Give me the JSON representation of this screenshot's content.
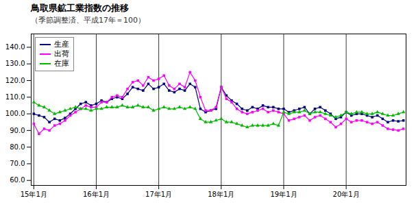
{
  "chart_data": {
    "type": "line",
    "title": "鳥取県鉱工業指数の推移",
    "subtitle": "（季節調整済、平成17年＝100）",
    "categories": [
      "15年1月",
      null,
      null,
      null,
      null,
      null,
      null,
      null,
      null,
      null,
      null,
      null,
      "16年1月",
      null,
      null,
      null,
      null,
      null,
      null,
      null,
      null,
      null,
      null,
      null,
      "17年1月",
      null,
      null,
      null,
      null,
      null,
      null,
      null,
      null,
      null,
      null,
      null,
      "18年1月",
      null,
      null,
      null,
      null,
      null,
      null,
      null,
      null,
      null,
      null,
      null,
      "19年1月",
      null,
      null,
      null,
      null,
      null,
      null,
      null,
      null,
      null,
      null,
      null,
      "20年1月",
      null,
      null,
      null,
      null,
      null,
      null,
      null,
      null,
      null,
      null,
      null
    ],
    "series": [
      {
        "name": "生産",
        "color": "#000080",
        "marker": "square",
        "values": [
          100.0,
          99.0,
          98.0,
          95.0,
          97.0,
          96.0,
          97.5,
          100.0,
          103.0,
          106.0,
          107.0,
          105.0,
          106.0,
          108.0,
          107.0,
          109.0,
          110.0,
          109.0,
          112.0,
          116.0,
          115.0,
          114.0,
          118.0,
          115.0,
          116.0,
          118.0,
          114.0,
          113.0,
          115.0,
          114.0,
          118.0,
          116.0,
          103.0,
          101.0,
          102.0,
          103.0,
          116.0,
          111.0,
          108.0,
          106.0,
          103.0,
          102.0,
          104.0,
          103.0,
          105.0,
          104.0,
          104.0,
          103.0,
          103.0,
          101.0,
          102.0,
          103.0,
          104.0,
          100.0,
          103.0,
          104.0,
          102.0,
          100.0,
          97.0,
          98.0,
          101.0,
          99.0,
          100.0,
          100.0,
          99.0,
          98.0,
          99.0,
          97.0,
          95.0,
          96.0,
          95.5,
          96.0
        ]
      },
      {
        "name": "出荷",
        "color": "#ff00ff",
        "marker": "square",
        "values": [
          94.0,
          88.0,
          91.0,
          90.0,
          93.0,
          94.0,
          96.0,
          99.0,
          101.0,
          103.0,
          105.0,
          104.0,
          104.0,
          107.0,
          107.0,
          110.0,
          111.0,
          110.0,
          115.0,
          119.0,
          120.0,
          117.0,
          122.0,
          120.0,
          121.0,
          123.0,
          117.0,
          115.0,
          118.0,
          116.0,
          125.0,
          120.0,
          110.0,
          102.0,
          102.0,
          104.0,
          116.0,
          109.0,
          107.0,
          103.0,
          101.0,
          100.0,
          101.0,
          102.0,
          103.0,
          101.0,
          102.0,
          101.0,
          100.0,
          96.0,
          97.0,
          98.0,
          99.0,
          96.0,
          98.0,
          99.0,
          97.0,
          95.0,
          92.0,
          94.0,
          97.0,
          95.0,
          96.0,
          96.0,
          95.0,
          94.0,
          95.0,
          93.0,
          91.0,
          90.5,
          90.0,
          91.0
        ]
      },
      {
        "name": "在庫",
        "color": "#00bb00",
        "marker": "triangle",
        "values": [
          107.0,
          105.0,
          104.0,
          102.0,
          100.0,
          101.0,
          102.0,
          103.0,
          104.0,
          103.0,
          103.0,
          102.0,
          103.0,
          103.0,
          104.0,
          104.0,
          104.0,
          105.0,
          104.0,
          104.0,
          105.0,
          104.0,
          104.0,
          102.0,
          103.0,
          104.0,
          103.0,
          103.0,
          104.0,
          103.0,
          104.0,
          103.0,
          97.0,
          95.0,
          95.0,
          96.0,
          97.0,
          95.0,
          95.0,
          94.0,
          93.0,
          92.0,
          93.0,
          93.0,
          93.0,
          93.0,
          94.0,
          93.0,
          101.0,
          100.0,
          101.0,
          101.0,
          102.0,
          100.0,
          101.0,
          101.0,
          100.0,
          99.0,
          98.0,
          99.0,
          101.0,
          100.0,
          101.0,
          101.0,
          100.0,
          100.0,
          101.0,
          100.0,
          99.0,
          99.0,
          100.0,
          101.0
        ]
      }
    ],
    "ylim": [
      57.0,
      148.0
    ],
    "yticks": [
      {
        "value": 60,
        "label": "60.0"
      },
      {
        "value": 70,
        "label": "70.0"
      },
      {
        "value": 80,
        "label": "80.0"
      },
      {
        "value": 90,
        "label": "90.0"
      },
      {
        "value": 100,
        "label": "100.0"
      },
      {
        "value": 110,
        "label": "110.0"
      },
      {
        "value": 120,
        "label": "120.0"
      },
      {
        "value": 130,
        "label": "130.0"
      },
      {
        "value": 140,
        "label": "140.0"
      }
    ],
    "grid": "x",
    "legend": "upper left"
  }
}
